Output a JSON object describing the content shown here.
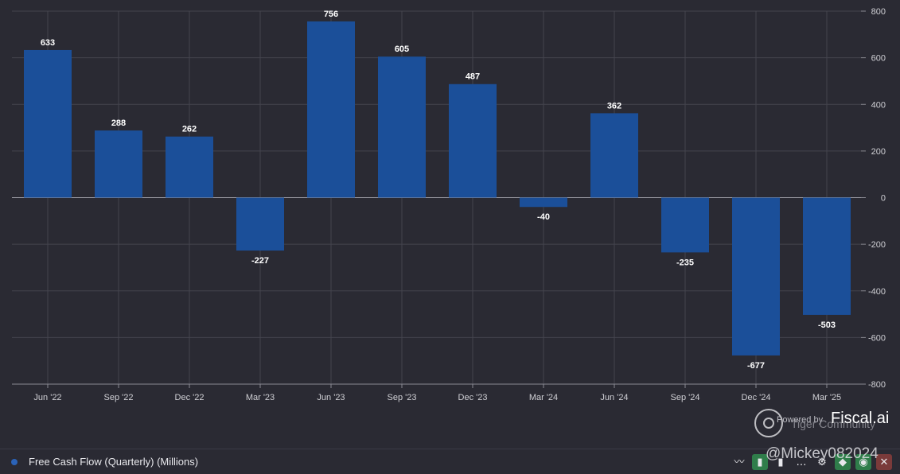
{
  "chart_data": {
    "type": "bar",
    "categories": [
      "Jun '22",
      "Sep '22",
      "Dec '22",
      "Mar '23",
      "Jun '23",
      "Sep '23",
      "Dec '23",
      "Mar '24",
      "Jun '24",
      "Sep '24",
      "Dec '24",
      "Mar '25"
    ],
    "series": [
      {
        "name": "Free Cash Flow (Quarterly) (Millions)",
        "values": [
          633,
          288,
          262,
          -227,
          756,
          605,
          487,
          -40,
          362,
          -235,
          -677,
          -503
        ],
        "color": "#1b4f99"
      }
    ],
    "data_labels": [
      "633",
      "288",
      "262",
      "-227",
      "756",
      "605",
      "487",
      "-40",
      "362",
      "-235",
      "-677",
      "-503"
    ],
    "y_ticks": [
      800,
      600,
      400,
      200,
      0,
      -200,
      -400,
      -600,
      -800
    ],
    "y_tick_labels": [
      "800",
      "600",
      "400",
      "200",
      "0",
      "-200",
      "-400",
      "-600",
      "-800"
    ],
    "ylim": [
      -800,
      800
    ],
    "y_axis_side": "right",
    "grid": true,
    "legend_position": "bottom-left"
  },
  "footer": {
    "legend_label": "Free Cash Flow (Quarterly) (Millions)",
    "tools": [
      "chart-line-icon",
      "bar-chart-icon",
      "bar-chart-alt-icon",
      "ellipsis-icon",
      "gear-icon",
      "tag-icon",
      "eye-icon",
      "close-icon"
    ]
  },
  "brand": {
    "powered_by": "Powered by",
    "name": "Fiscal.ai",
    "watermark_1": "Tiger Community",
    "watermark_2": "@Mickey082024"
  },
  "colors": {
    "background": "#2a2a33",
    "grid": "#44444e",
    "bar": "#1b4f99"
  }
}
